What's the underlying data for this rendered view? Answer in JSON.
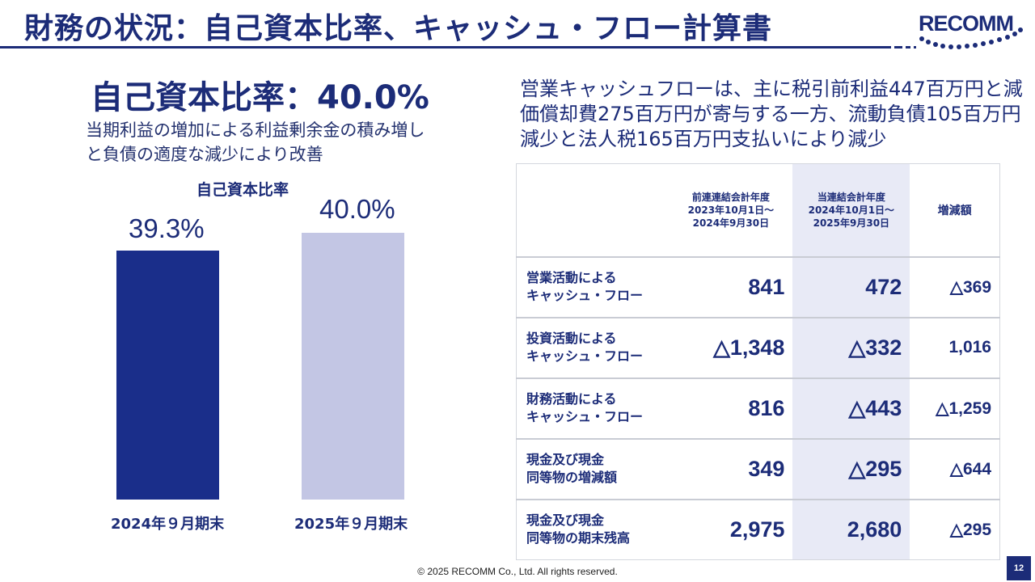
{
  "header": {
    "title": "財務の状況：自己資本比率、キャッシュ・フロー計算書",
    "logo_text": "RECOMM",
    "accent_color": "#1c2c78"
  },
  "equity_ratio": {
    "headline": "自己資本比率：40.0%",
    "description": "当期利益の増加による利益剰余金の積み増しと負債の適度な減少により改善"
  },
  "chart_data": {
    "type": "bar",
    "title": "自己資本比率",
    "categories": [
      "2024年９月期末",
      "2025年９月期末"
    ],
    "values": [
      39.3,
      40.0
    ],
    "value_labels": [
      "39.3%",
      "40.0%"
    ],
    "colors": [
      "#1a2e8a",
      "#c3c6e4"
    ],
    "xlabel": "",
    "ylabel": "",
    "grid": false
  },
  "cash_flow": {
    "summary": "営業キャッシュフローは、主に税引前利益447百万円と減価償却費275百万円が寄与する一方、流動負債105百万円減少と法人税165百万円支払いにより減少",
    "headers": {
      "prev": [
        "前連連結会計年度",
        "2023年10月1日～",
        "2024年9月30日"
      ],
      "curr": [
        "当連結会計年度",
        "2024年10月1日～",
        "2025年9月30日"
      ],
      "diff": "増減額"
    },
    "rows": [
      {
        "label": [
          "営業活動による",
          "キャッシュ・フロー"
        ],
        "prev": "841",
        "curr": "472",
        "diff": "△369"
      },
      {
        "label": [
          "投資活動による",
          "キャッシュ・フロー"
        ],
        "prev": "△1,348",
        "curr": "△332",
        "diff": "1,016"
      },
      {
        "label": [
          "財務活動による",
          "キャッシュ・フロー"
        ],
        "prev": "816",
        "curr": "△443",
        "diff": "△1,259"
      },
      {
        "label": [
          "現金及び現金",
          "同等物の増減額"
        ],
        "prev": "349",
        "curr": "△295",
        "diff": "△644"
      },
      {
        "label": [
          "現金及び現金",
          "同等物の期末残高"
        ],
        "prev": "2,975",
        "curr": "2,680",
        "diff": "△295"
      }
    ]
  },
  "footer": {
    "copyright": "© 2025 RECOMM Co., Ltd. All rights reserved.",
    "page_number": "12"
  }
}
